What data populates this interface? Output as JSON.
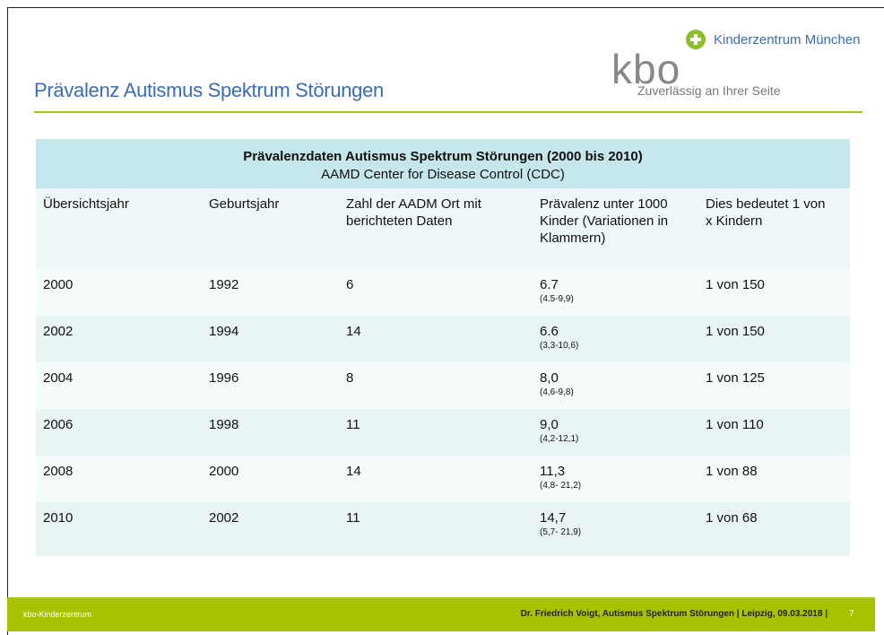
{
  "header": {
    "title": "Prävalenz Autismus Spektrum Störungen",
    "logo": "kbo",
    "organization": "Kinderzentrum München",
    "tagline": "Zuverlässig an Ihrer Seite"
  },
  "table": {
    "title": "Prävalenzdaten Autismus Spektrum Störungen (2000 bis 2010)",
    "subtitle": "AAMD Center for Disease Control (CDC)",
    "columns": [
      "Übersichtsjahr",
      "Geburtsjahr",
      "Zahl der AADM Ort mit berichteten Daten",
      "Prävalenz unter 1000 Kinder (Variationen in Klammern)",
      "Dies bedeutet  1 von x Kindern"
    ],
    "rows": [
      [
        "2000",
        "1992",
        "6",
        {
          "value": "6.7",
          "range": "(4.5-9,9)"
        },
        "1 von 150"
      ],
      [
        "2002",
        "1994",
        "14",
        {
          "value": "6.6",
          "range": "(3,3-10,6)"
        },
        "1 von 150"
      ],
      [
        "2004",
        "1996",
        "8",
        {
          "value": "8,0",
          "range": "(4,6-9,8)"
        },
        "1 von 125"
      ],
      [
        "2006",
        "1998",
        "11",
        {
          "value": "9,0",
          "range": "(4,2-12,1)"
        },
        "1 von 110"
      ],
      [
        "2008",
        "2000",
        "14",
        {
          "value": "11,3",
          "range": "(4,8- 21,2)"
        },
        "1 von 88"
      ],
      [
        "2010",
        "2002",
        "11",
        {
          "value": "14,7",
          "range": "(5,7- 21,9)"
        },
        "1 von 68"
      ]
    ]
  },
  "footer": {
    "left": "kbo-Kinderzentrum",
    "right": "Dr. Friedrich Voigt, Autismus Spektrum Störungen | Leipzig, 09.03.2018 |",
    "page": "7"
  }
}
